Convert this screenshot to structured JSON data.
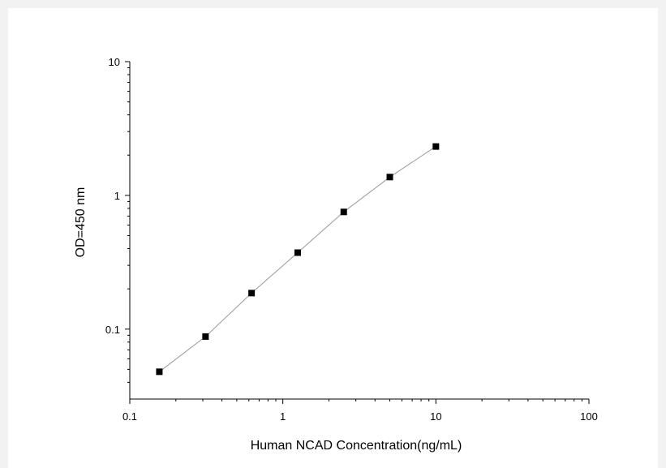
{
  "chart_data": {
    "type": "scatter",
    "title": "",
    "xlabel": "Human NCAD Concentration(ng/mL)",
    "ylabel": "OD=450 nm",
    "xscale": "log",
    "yscale": "log",
    "xlim": [
      0.1,
      100
    ],
    "ylim": [
      0.03,
      10
    ],
    "x_ticks": [
      {
        "value": 0.1,
        "label": "0.1"
      },
      {
        "value": 1,
        "label": "1"
      },
      {
        "value": 10,
        "label": "10"
      },
      {
        "value": 100,
        "label": "100"
      }
    ],
    "y_ticks": [
      {
        "value": 0.1,
        "label": "0.1"
      },
      {
        "value": 1,
        "label": "1"
      },
      {
        "value": 10,
        "label": "10"
      }
    ],
    "grid": false,
    "legend": "none",
    "series": [
      {
        "x": [
          0.156,
          0.3125,
          0.625,
          1.25,
          2.5,
          5,
          10
        ],
        "y": [
          0.048,
          0.088,
          0.186,
          0.373,
          0.752,
          1.371,
          2.32
        ],
        "marker": "square",
        "marker_color": "#000000",
        "line_color": "#999999",
        "connected": true
      }
    ]
  }
}
